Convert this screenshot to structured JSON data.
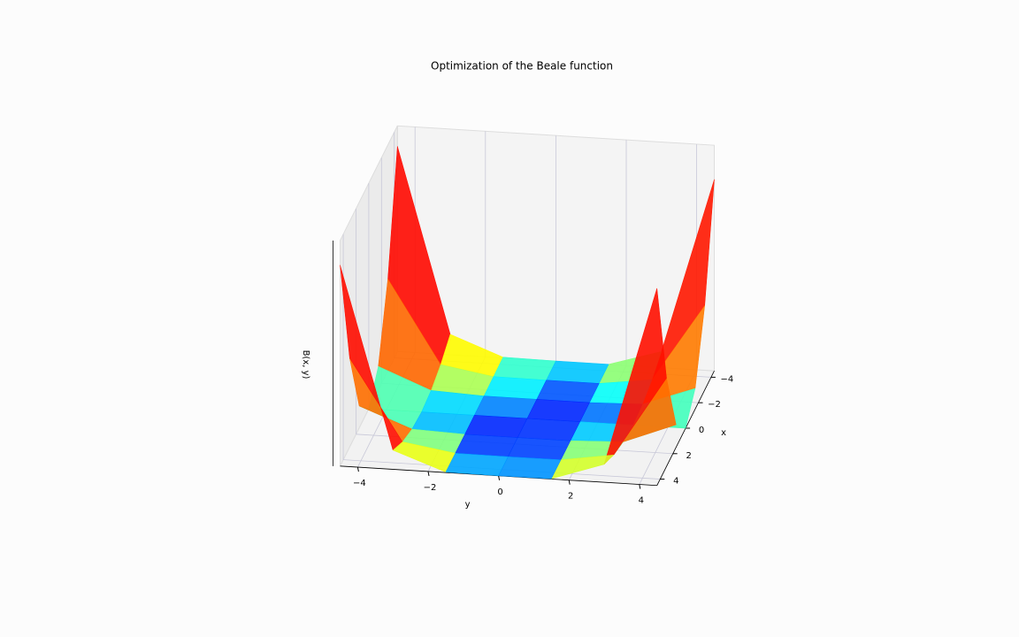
{
  "chart_data": {
    "type": "surface",
    "title": "Optimization of the Beale function",
    "xlabel": "x",
    "ylabel": "y",
    "zlabel": "B(x, y)",
    "x": [
      -4.5,
      -3,
      -1.5,
      0,
      1.5,
      3,
      4.5
    ],
    "y": [
      -4.5,
      -3,
      -1.5,
      0,
      1.5,
      3,
      4.5
    ],
    "z": [
      [
        181854,
        18064,
        671.8,
        132.3,
        77.0,
        14277,
        169681
      ],
      [
        81245,
        8159,
        331.3,
        79.5,
        22.5,
        6175,
        74851
      ],
      [
        20632,
        2143,
        112.1,
        40.1,
        1.6,
        1420,
        18296
      ],
      [
        14.2,
        14.2,
        14.2,
        14.2,
        14.2,
        14.2,
        14.2
      ],
      [
        19391,
        1774,
        37.6,
        1.8,
        60.4,
        1956,
        20007
      ],
      [
        78764,
        7421,
        182.3,
        3.0,
        140.1,
        7246,
        78273
      ],
      [
        178132,
        16957,
        448.2,
        17.6,
        253.3,
        15883,
        174813
      ]
    ],
    "xlim": [
      -4.5,
      4.5
    ],
    "ylim": [
      -4.5,
      4.5
    ],
    "zlim": [
      0,
      200000
    ],
    "xticks": [
      {
        "value": -4,
        "label": "−4"
      },
      {
        "value": -2,
        "label": "−2"
      },
      0,
      2,
      4
    ],
    "yticks": [
      {
        "value": -4,
        "label": "−4"
      },
      {
        "value": -2,
        "label": "−2"
      },
      0,
      2,
      4
    ],
    "colormap": "jet",
    "color_norm": "log",
    "grid": true
  }
}
